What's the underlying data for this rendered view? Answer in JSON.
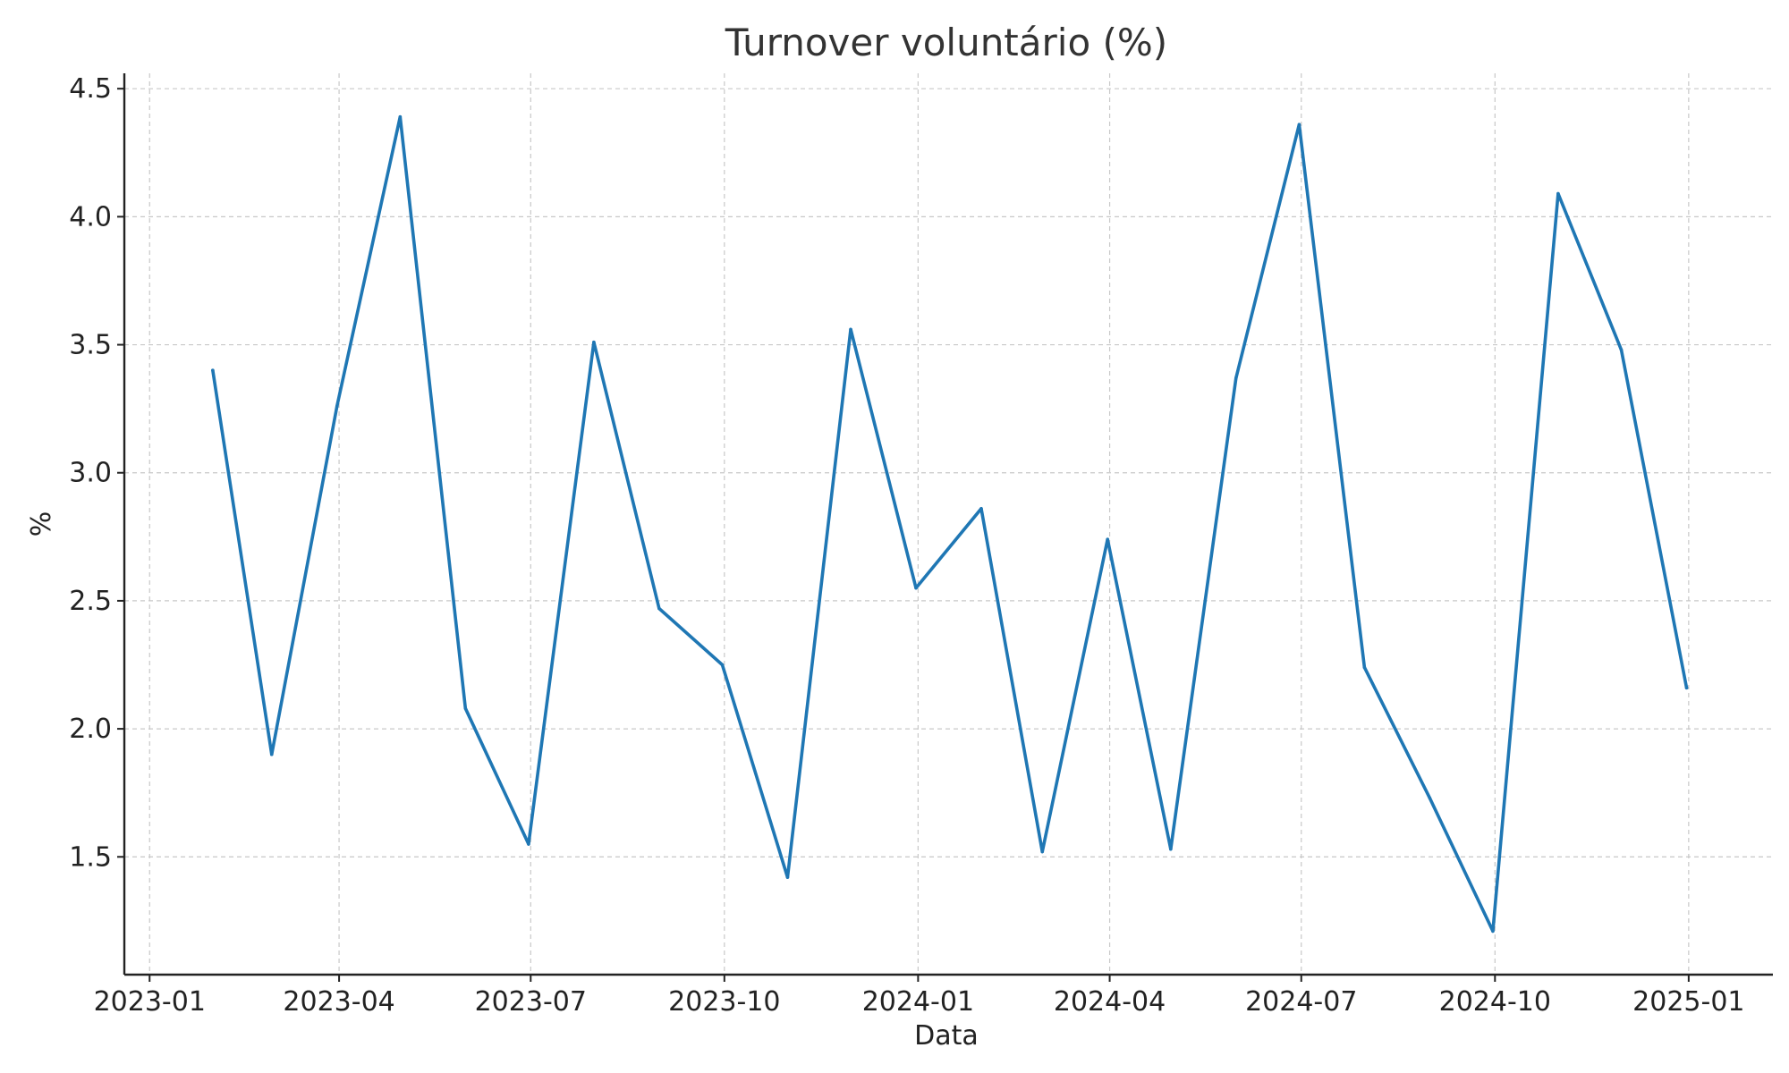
{
  "chart_data": {
    "type": "line",
    "title": "Turnover voluntário (%)",
    "xlabel": "Data",
    "ylabel": "%",
    "grid": true,
    "x_type": "date",
    "xlim": [
      "2022-12-20",
      "2025-02-10"
    ],
    "ylim": [
      1.04,
      4.56
    ],
    "x_ticks": [
      "2023-01",
      "2023-04",
      "2023-07",
      "2023-10",
      "2024-01",
      "2024-04",
      "2024-07",
      "2024-10",
      "2025-01"
    ],
    "y_ticks": [
      1.5,
      2.0,
      2.5,
      3.0,
      3.5,
      4.0,
      4.5
    ],
    "y_tick_labels": [
      "1.5",
      "2.0",
      "2.5",
      "3.0",
      "3.5",
      "4.0",
      "4.5"
    ],
    "series": [
      {
        "color": "#1f77b4",
        "x": [
          "2023-01-31",
          "2023-02-28",
          "2023-03-31",
          "2023-04-30",
          "2023-05-31",
          "2023-06-30",
          "2023-07-31",
          "2023-08-31",
          "2023-09-30",
          "2023-10-31",
          "2023-11-30",
          "2023-12-31",
          "2024-01-31",
          "2024-02-29",
          "2024-03-31",
          "2024-04-30",
          "2024-05-31",
          "2024-06-30",
          "2024-07-31",
          "2024-08-31",
          "2024-09-30",
          "2024-10-31",
          "2024-11-30",
          "2024-12-31"
        ],
        "values": [
          3.4,
          1.9,
          3.26,
          4.39,
          2.08,
          1.55,
          3.51,
          2.47,
          2.25,
          1.42,
          3.56,
          2.55,
          2.86,
          1.52,
          2.74,
          1.53,
          3.37,
          4.36,
          2.24,
          1.73,
          1.21,
          4.09,
          3.48,
          2.16
        ]
      }
    ]
  }
}
